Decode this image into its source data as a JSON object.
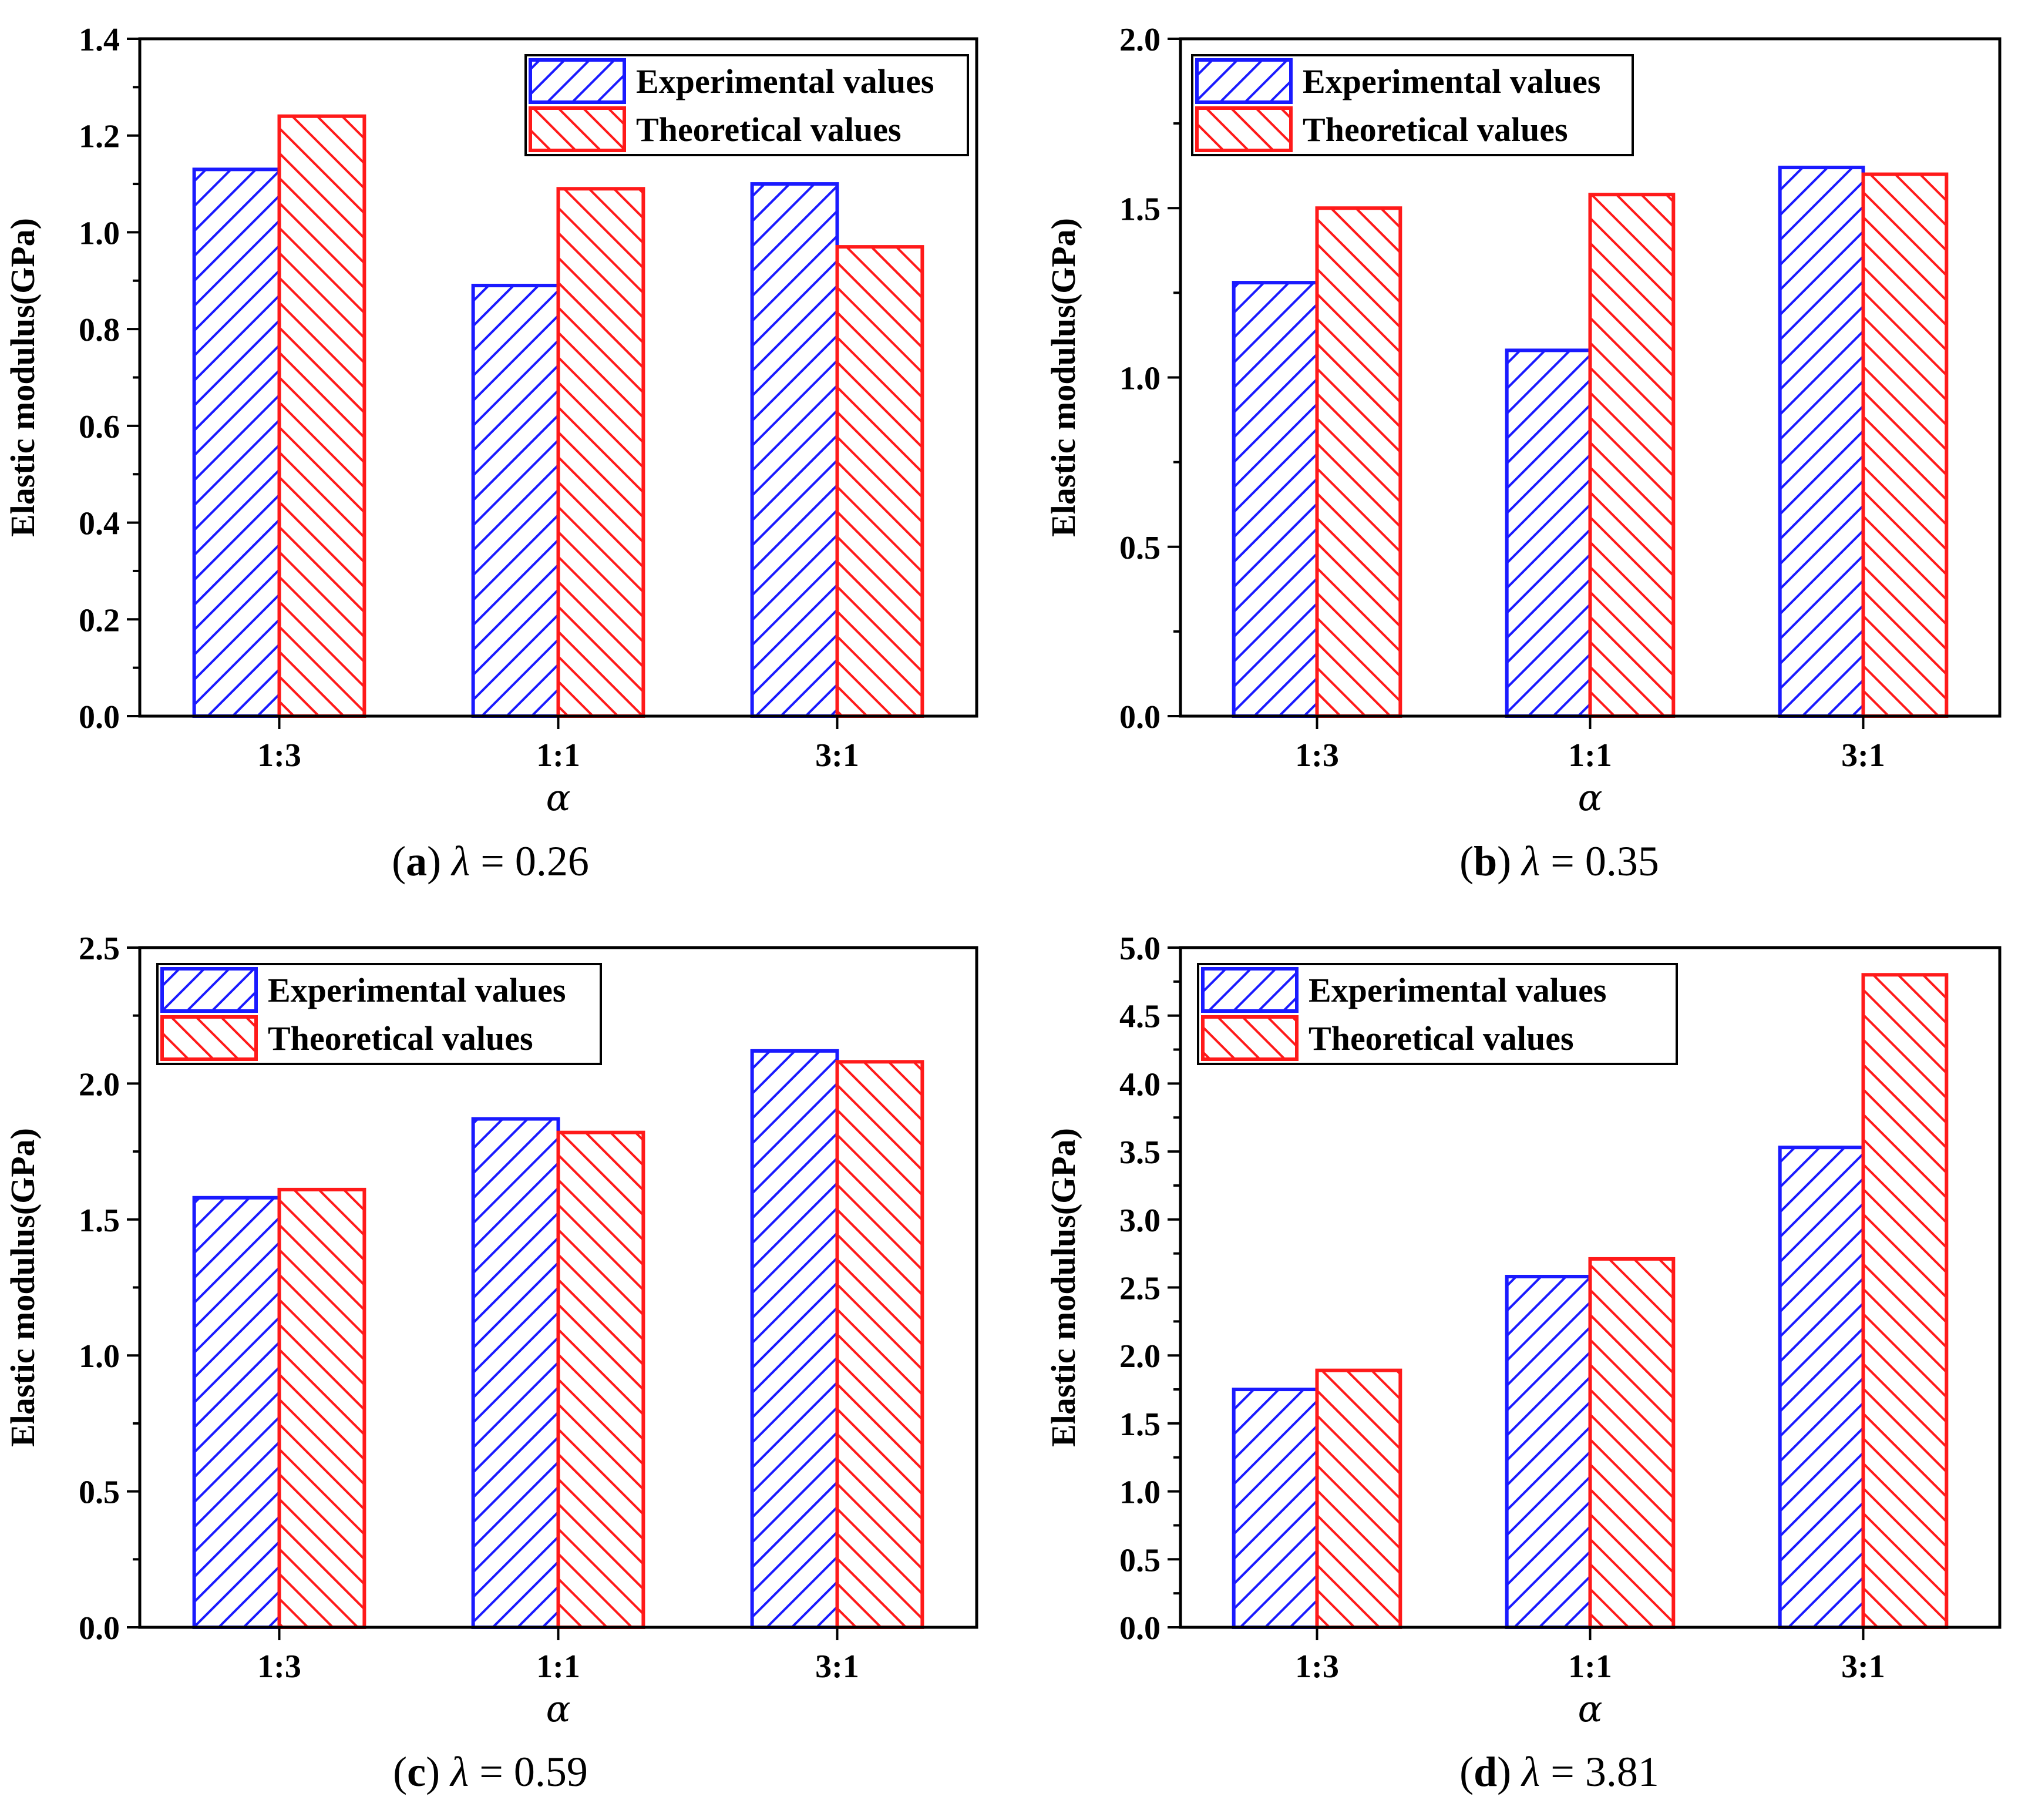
{
  "colors": {
    "experimental": "#1a1aff",
    "theoretical": "#ff1a1a",
    "axis": "#000000"
  },
  "chart_data": [
    {
      "type": "bar",
      "panel": "a",
      "caption": {
        "letter": "a",
        "symbol": "λ",
        "equation": " = 0.26"
      },
      "xlabel": "α",
      "ylabel": "Elastic modulus(GPa)",
      "categories": [
        "1:3",
        "1:1",
        "3:1"
      ],
      "ylim": [
        0,
        1.4
      ],
      "yticks": [
        0.0,
        0.2,
        0.4,
        0.6,
        0.8,
        1.0,
        1.2,
        1.4
      ],
      "ytick_labels": [
        "0.0",
        "0.2",
        "0.4",
        "0.6",
        "0.8",
        "1.0",
        "1.2",
        "1.4"
      ],
      "legend_position": "top-right",
      "series": [
        {
          "name": "Experimental values",
          "color": "#1a1aff",
          "hatch": "forward",
          "values": [
            1.13,
            0.89,
            1.1
          ]
        },
        {
          "name": "Theoretical values",
          "color": "#ff1a1a",
          "hatch": "backward",
          "values": [
            1.24,
            1.09,
            0.97
          ]
        }
      ]
    },
    {
      "type": "bar",
      "panel": "b",
      "caption": {
        "letter": "b",
        "symbol": "λ",
        "equation": " = 0.35"
      },
      "xlabel": "α",
      "ylabel": "Elastic modulus(GPa)",
      "categories": [
        "1:3",
        "1:1",
        "3:1"
      ],
      "ylim": [
        0,
        2.0
      ],
      "yticks": [
        0.0,
        0.5,
        1.0,
        1.5,
        2.0
      ],
      "ytick_labels": [
        "0.0",
        "0.5",
        "1.0",
        "1.5",
        "2.0"
      ],
      "legend_position": "top-left",
      "series": [
        {
          "name": "Experimental values",
          "color": "#1a1aff",
          "hatch": "forward",
          "values": [
            1.28,
            1.08,
            1.62
          ]
        },
        {
          "name": "Theoretical values",
          "color": "#ff1a1a",
          "hatch": "backward",
          "values": [
            1.5,
            1.54,
            1.6
          ]
        }
      ]
    },
    {
      "type": "bar",
      "panel": "c",
      "caption": {
        "letter": "c",
        "symbol": "λ",
        "equation": " = 0.59"
      },
      "xlabel": "α",
      "ylabel": "Elastic modulus(GPa)",
      "categories": [
        "1:3",
        "1:1",
        "3:1"
      ],
      "ylim": [
        0,
        2.5
      ],
      "yticks": [
        0.0,
        0.5,
        1.0,
        1.5,
        2.0,
        2.5
      ],
      "ytick_labels": [
        "0.0",
        "0.5",
        "1.0",
        "1.5",
        "2.0",
        "2.5"
      ],
      "legend_position": "top-left",
      "series": [
        {
          "name": "Experimental values",
          "color": "#1a1aff",
          "hatch": "forward",
          "values": [
            1.58,
            1.87,
            2.12
          ]
        },
        {
          "name": "Theoretical values",
          "color": "#ff1a1a",
          "hatch": "backward",
          "values": [
            1.61,
            1.82,
            2.08
          ]
        }
      ]
    },
    {
      "type": "bar",
      "panel": "d",
      "caption": {
        "letter": "d",
        "symbol": "λ",
        "equation": " = 3.81"
      },
      "xlabel": "α",
      "ylabel": "Elastic modulus(GPa)",
      "categories": [
        "1:3",
        "1:1",
        "3:1"
      ],
      "ylim": [
        0,
        5.0
      ],
      "yticks": [
        0.0,
        0.5,
        1.0,
        1.5,
        2.0,
        2.5,
        3.0,
        3.5,
        4.0,
        4.5,
        5.0
      ],
      "ytick_labels": [
        "0.0",
        "0.5",
        "1.0",
        "1.5",
        "2.0",
        "2.5",
        "3.0",
        "3.5",
        "4.0",
        "4.5",
        "5.0"
      ],
      "legend_position": "top-left",
      "series": [
        {
          "name": "Experimental values",
          "color": "#1a1aff",
          "hatch": "forward",
          "values": [
            1.75,
            2.58,
            3.53
          ]
        },
        {
          "name": "Theoretical values",
          "color": "#ff1a1a",
          "hatch": "backward",
          "values": [
            1.89,
            2.71,
            4.8
          ]
        }
      ]
    }
  ]
}
